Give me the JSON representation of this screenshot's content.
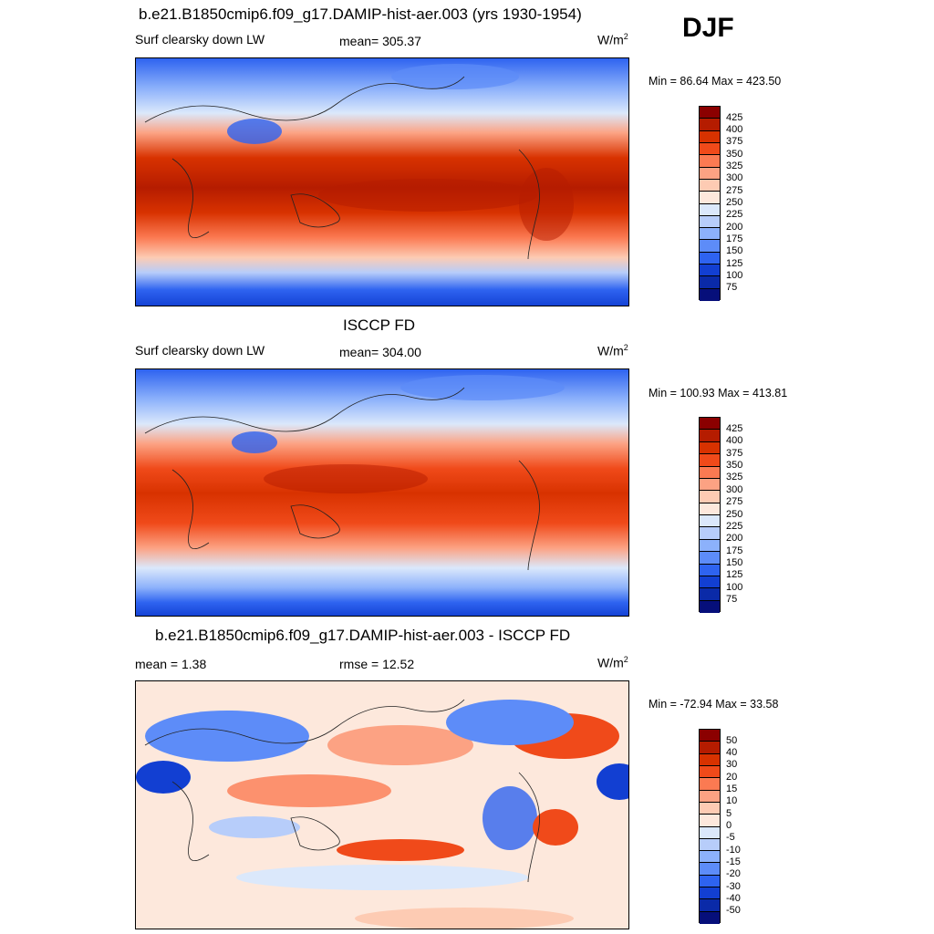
{
  "season": "DJF",
  "panels": [
    {
      "title": "b.e21.B1850cmip6.f09_g17.DAMIP-hist-aer.003 (yrs 1930-1954)",
      "left": "Surf clearsky down LW",
      "center": "mean= 305.37",
      "units_base": "W/m",
      "units_exp": "2",
      "minmax": "Min =  86.64 Max = 423.50",
      "kind": "abs"
    },
    {
      "title": "ISCCP FD",
      "left": "Surf clearsky down LW",
      "center": "mean= 304.00",
      "units_base": "W/m",
      "units_exp": "2",
      "minmax": "Min = 100.93 Max = 413.81",
      "kind": "abs"
    },
    {
      "title": "b.e21.B1850cmip6.f09_g17.DAMIP-hist-aer.003 - ISCCP FD",
      "left": "mean =   1.38",
      "center": "rmse =  12.52",
      "units_base": "W/m",
      "units_exp": "2",
      "minmax": "Min = -72.94 Max =  33.58",
      "kind": "diff"
    }
  ],
  "colorbars": {
    "abs": {
      "labels": [
        "425",
        "400",
        "375",
        "350",
        "325",
        "300",
        "275",
        "250",
        "225",
        "200",
        "175",
        "150",
        "125",
        "100",
        "75"
      ],
      "colors": [
        "#8b0000",
        "#b51c00",
        "#d83200",
        "#f04a1a",
        "#fb7a52",
        "#fca283",
        "#fdcbb3",
        "#fde8dc",
        "#dbe8fb",
        "#b7cdfa",
        "#8cb1fb",
        "#5d8cf8",
        "#2e63f0",
        "#123fd2",
        "#0a2aa8",
        "#060f7a"
      ]
    },
    "diff": {
      "labels": [
        "50",
        "40",
        "30",
        "20",
        "15",
        "10",
        "5",
        "0",
        "-5",
        "-10",
        "-15",
        "-20",
        "-30",
        "-40",
        "-50"
      ],
      "colors": [
        "#8b0000",
        "#b51c00",
        "#d83200",
        "#f04a1a",
        "#fb7a52",
        "#fca283",
        "#fdcbb3",
        "#fde8dc",
        "#dbe8fb",
        "#b7cdfa",
        "#8cb1fb",
        "#5d8cf8",
        "#2e63f0",
        "#123fd2",
        "#0a2aa8",
        "#060f7a"
      ]
    }
  }
}
